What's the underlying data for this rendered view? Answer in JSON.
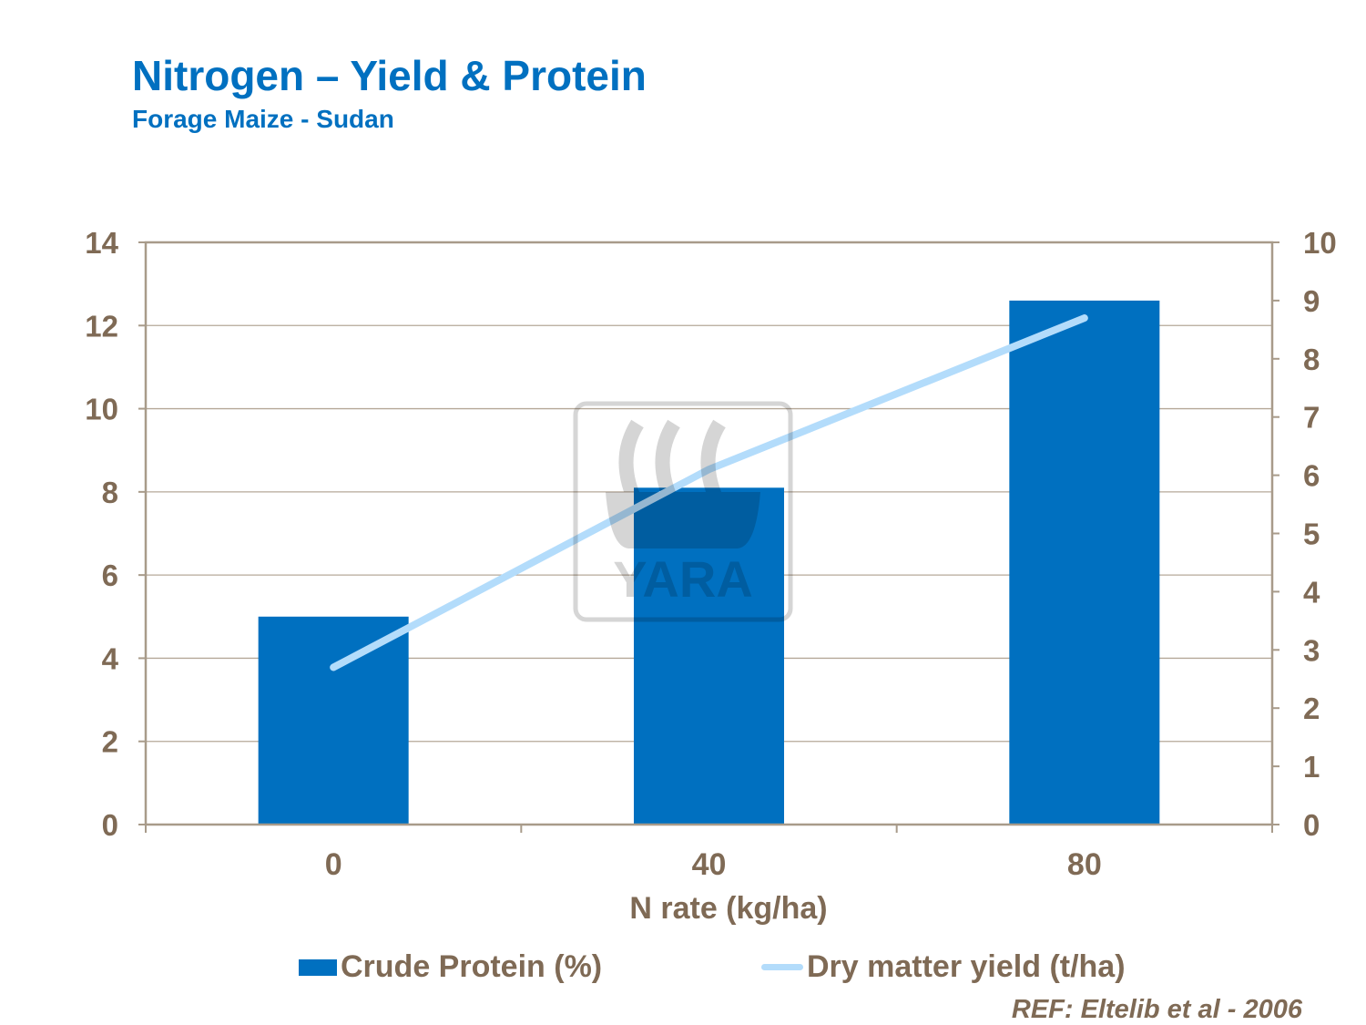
{
  "title": "Nitrogen – Yield & Protein",
  "subtitle": "Forage Maize - Sudan",
  "reference": "REF:  Eltelib et al - 2006",
  "watermark": {
    "logo_text": "YARA"
  },
  "chart_data": {
    "type": "bar+line",
    "categories": [
      "0",
      "40",
      "80"
    ],
    "xlabel": "N rate (kg/ha)",
    "y_left": {
      "min": 0,
      "max": 14,
      "ticks": [
        "0",
        "2",
        "4",
        "6",
        "8",
        "10",
        "12",
        "14"
      ]
    },
    "y_right": {
      "min": 0,
      "max": 10,
      "ticks": [
        "0",
        "1",
        "2",
        "3",
        "4",
        "5",
        "6",
        "7",
        "8",
        "9",
        "10"
      ]
    },
    "grid": true,
    "legend_position": "bottom",
    "series": [
      {
        "name": "Crude Protein (%)",
        "type": "bar",
        "axis": "left",
        "values": [
          5.0,
          8.1,
          12.6
        ],
        "color": "#0070c0"
      },
      {
        "name": "Dry matter yield (t/ha)",
        "type": "line",
        "axis": "right",
        "values": [
          2.7,
          6.1,
          8.7
        ],
        "color": "#b3dcfb"
      }
    ]
  }
}
